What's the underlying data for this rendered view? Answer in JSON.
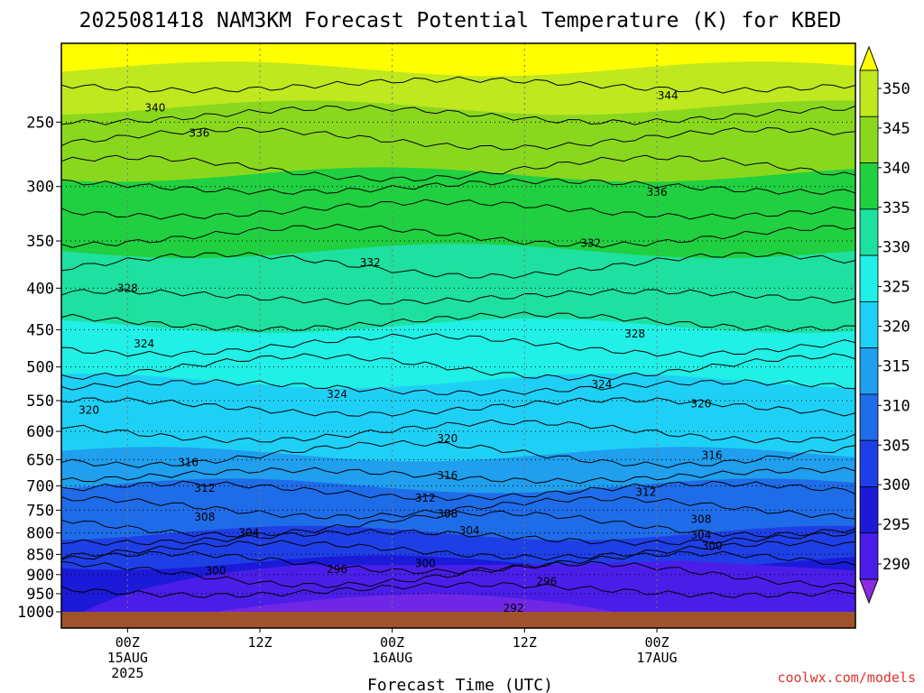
{
  "chart_data": {
    "type": "heatmap",
    "title": "2025081418 NAM3KM Forecast Potential Temperature (K) for KBED",
    "xlabel": "Forecast Time (UTC)",
    "ylabel": "",
    "y_scale": "log",
    "y_inverted": true,
    "ylim": [
      1000,
      200
    ],
    "y_ticks": [
      250,
      300,
      350,
      400,
      450,
      500,
      550,
      600,
      650,
      700,
      750,
      800,
      850,
      900,
      950,
      1000
    ],
    "xlim": [
      "2025-08-14 18Z",
      "2025-08-17 18Z"
    ],
    "x_ticks": [
      {
        "value": "2025-08-15 00Z",
        "lines": [
          "00Z",
          "15AUG",
          "2025"
        ]
      },
      {
        "value": "2025-08-15 12Z",
        "lines": [
          "12Z"
        ]
      },
      {
        "value": "2025-08-16 00Z",
        "lines": [
          "00Z",
          "16AUG"
        ]
      },
      {
        "value": "2025-08-16 12Z",
        "lines": [
          "12Z"
        ]
      },
      {
        "value": "2025-08-17 00Z",
        "lines": [
          "00Z",
          "17AUG"
        ]
      }
    ],
    "grid": true,
    "colorbar": {
      "labels": [
        290,
        295,
        300,
        305,
        310,
        315,
        320,
        325,
        330,
        335,
        340,
        345,
        350
      ],
      "colors": [
        "#8a2be2",
        "#4a1ee8",
        "#1a1ad8",
        "#1f3fe6",
        "#1f6ce8",
        "#1f9fee",
        "#1fd0f6",
        "#20f0e6",
        "#1ee0a0",
        "#20d040",
        "#8ad81e",
        "#bfe81e",
        "#ffff00"
      ]
    },
    "contour_labels": [
      {
        "text": "340"
      },
      {
        "text": "336"
      },
      {
        "text": "344"
      },
      {
        "text": "336"
      },
      {
        "text": "332"
      },
      {
        "text": "332"
      },
      {
        "text": "328"
      },
      {
        "text": "328"
      },
      {
        "text": "324"
      },
      {
        "text": "324"
      },
      {
        "text": "324"
      },
      {
        "text": "320"
      },
      {
        "text": "320"
      },
      {
        "text": "320"
      },
      {
        "text": "316"
      },
      {
        "text": "316"
      },
      {
        "text": "316"
      },
      {
        "text": "312"
      },
      {
        "text": "312"
      },
      {
        "text": "312"
      },
      {
        "text": "308"
      },
      {
        "text": "308"
      },
      {
        "text": "308"
      },
      {
        "text": "304"
      },
      {
        "text": "304"
      },
      {
        "text": "304"
      },
      {
        "text": "300"
      },
      {
        "text": "300"
      },
      {
        "text": "300"
      },
      {
        "text": "296"
      },
      {
        "text": "296"
      },
      {
        "text": "292"
      }
    ]
  },
  "credit": "coolwx.com/models"
}
